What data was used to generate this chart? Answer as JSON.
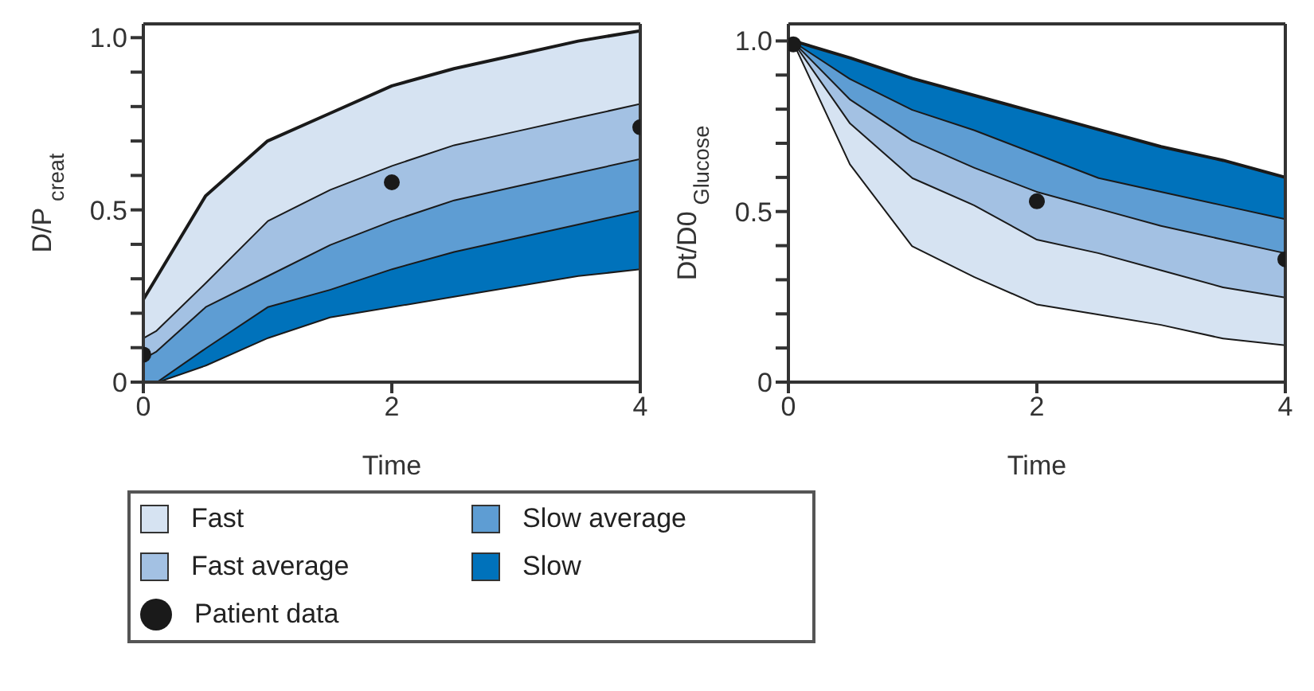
{
  "chart_data": [
    {
      "type": "area",
      "stacked": true,
      "xlabel": "Time",
      "ylabel": "D/P$_{creat}$",
      "x": [
        0,
        0.1,
        0.5,
        1,
        1.5,
        2,
        2.5,
        3,
        3.5,
        4
      ],
      "xlim": [
        0,
        4
      ],
      "xticks": [
        0,
        2,
        4
      ],
      "ylim": [
        0,
        1.04
      ],
      "yticks": [
        0,
        {
          "value": 0.1,
          "label": null
        },
        {
          "value": 0.2,
          "label": null
        },
        {
          "value": 0.3,
          "label": null
        },
        {
          "value": 0.4,
          "label": null
        },
        {
          "value": 0.5,
          "label": "0.5"
        },
        {
          "value": 0.6,
          "label": null
        },
        {
          "value": 0.7,
          "label": null
        },
        {
          "value": 0.8,
          "label": null
        },
        {
          "value": 0.9,
          "label": null
        },
        {
          "value": 1.0,
          "label": "1.0"
        }
      ],
      "legend": "bottom",
      "grid": false,
      "series": [
        {
          "type": "area",
          "color": "#ffffff",
          "values": [
            0,
            0,
            0.05,
            0.13,
            0.19,
            0.22,
            0.25,
            0.28,
            0.31,
            0.33
          ]
        },
        {
          "type": "area",
          "name": "Slow",
          "color": "#0072bb",
          "values": [
            0,
            0,
            0.05,
            0.09,
            0.08,
            0.11,
            0.13,
            0.14,
            0.15,
            0.17
          ]
        },
        {
          "type": "area",
          "name": "Slow average",
          "color": "#5e9dd3",
          "values": [
            0.07,
            0.09,
            0.12,
            0.09,
            0.13,
            0.14,
            0.15,
            0.15,
            0.15,
            0.15
          ]
        },
        {
          "type": "area",
          "name": "Fast average",
          "color": "#a3c1e3",
          "values": [
            0.06,
            0.06,
            0.07,
            0.16,
            0.16,
            0.16,
            0.16,
            0.16,
            0.16,
            0.16
          ]
        },
        {
          "type": "area",
          "name": "Fast",
          "color": "#d6e3f2",
          "values": [
            0.11,
            0.15,
            0.25,
            0.23,
            0.22,
            0.23,
            0.22,
            0.22,
            0.22,
            0.21
          ]
        },
        {
          "type": "scatter",
          "name": "Patient data",
          "color": "#1a1a1a",
          "marker": "circle",
          "x": [
            0,
            2,
            4
          ],
          "values": [
            0.08,
            0.58,
            0.74
          ]
        }
      ]
    },
    {
      "type": "area",
      "stacked": true,
      "xlabel": "Time",
      "ylabel": "Dt/D0$_{Glucose}$",
      "x": [
        0.04,
        0.5,
        1,
        1.5,
        2,
        2.5,
        3,
        3.5,
        4
      ],
      "xlim": [
        0,
        4
      ],
      "xticks": [
        0,
        2,
        4
      ],
      "ylim": [
        0,
        1.05
      ],
      "yticks": [
        0,
        {
          "value": 0.1,
          "label": null
        },
        {
          "value": 0.2,
          "label": null
        },
        {
          "value": 0.3,
          "label": null
        },
        {
          "value": 0.4,
          "label": null
        },
        {
          "value": 0.5,
          "label": "0.5"
        },
        {
          "value": 0.6,
          "label": null
        },
        {
          "value": 0.7,
          "label": null
        },
        {
          "value": 0.8,
          "label": null
        },
        {
          "value": 0.9,
          "label": null
        },
        {
          "value": 1.0,
          "label": "1.0"
        }
      ],
      "grid": false,
      "series": [
        {
          "type": "area",
          "color": "#ffffff",
          "values": [
            1.0,
            0.64,
            0.4,
            0.31,
            0.23,
            0.2,
            0.17,
            0.13,
            0.11
          ]
        },
        {
          "type": "area",
          "color": "#d6e3f2",
          "values": [
            0,
            0.12,
            0.2,
            0.21,
            0.19,
            0.18,
            0.16,
            0.15,
            0.14
          ]
        },
        {
          "type": "area",
          "color": "#a3c1e3",
          "values": [
            0,
            0.07,
            0.11,
            0.11,
            0.14,
            0.13,
            0.13,
            0.14,
            0.13
          ]
        },
        {
          "type": "area",
          "color": "#5e9dd3",
          "values": [
            0,
            0.06,
            0.09,
            0.11,
            0.11,
            0.09,
            0.1,
            0.1,
            0.1
          ]
        },
        {
          "type": "area",
          "color": "#0072bb",
          "values": [
            0,
            0.06,
            0.09,
            0.1,
            0.12,
            0.14,
            0.13,
            0.13,
            0.12
          ]
        },
        {
          "type": "scatter",
          "color": "#1a1a1a",
          "marker": "circle",
          "x": [
            0.04,
            2,
            4
          ],
          "values": [
            0.99,
            0.53,
            0.36
          ]
        }
      ]
    }
  ]
}
